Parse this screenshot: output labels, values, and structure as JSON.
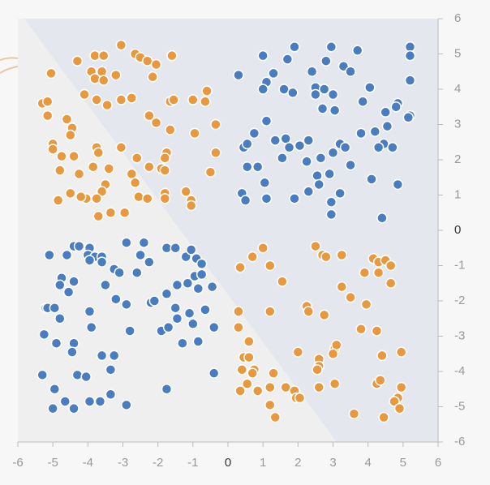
{
  "chart_data": {
    "type": "scatter",
    "xlim": [
      -6,
      6
    ],
    "ylim": [
      -6,
      6
    ],
    "xticks": [
      -6,
      -5,
      -4,
      -3,
      -2,
      -1,
      0,
      1,
      2,
      3,
      4,
      5,
      6
    ],
    "yticks": [
      6,
      5,
      4,
      3,
      2,
      1,
      0,
      -1,
      -2,
      -3,
      -4,
      -5,
      -6
    ],
    "series": [
      {
        "color": "#4a7dbf",
        "x": [
          1.0,
          1.9,
          2.95,
          3.7,
          3.3,
          3.5,
          2.8,
          2.4,
          1.7,
          5.2,
          5.2,
          5.2,
          0.3,
          1.1,
          1.0,
          1.3,
          1.6,
          1.85,
          2.5,
          2.5,
          2.75,
          3.0,
          2.7,
          3.05,
          4.05,
          3.85,
          4.5,
          4.85,
          4.8,
          5.2,
          5.15,
          4.2,
          4.55,
          3.8,
          4.45,
          4.3,
          4.7,
          3.2,
          3.35,
          1.1,
          0.75,
          0.45,
          0.55,
          1.35,
          1.65,
          1.75,
          2.05,
          2.3,
          1.55,
          2.25,
          2.65,
          3.0,
          3.5,
          2.55,
          2.9,
          2.6,
          0.55,
          0.85,
          1.05,
          0.4,
          0.5,
          1.1,
          1.9,
          2.3,
          3.2,
          2.95,
          4.1,
          4.85,
          2.95,
          4.4,
          -5.1,
          -4.6,
          -4.4,
          -4.25,
          -3.95,
          -4.0,
          -3.8,
          -3.6,
          -3.95,
          -3.6,
          -2.9,
          -2.5,
          -2.4,
          -3.25,
          -3.1,
          -2.6,
          -2.25,
          -1.75,
          -1.5,
          -1.2,
          -1.05,
          -0.9,
          -0.75,
          -4.75,
          -4.8,
          -4.4,
          -4.55,
          -3.5,
          -5.2,
          -5.15,
          -4.95,
          -4.8,
          -3.95,
          -3.2,
          -2.9,
          -2.2,
          -2.1,
          -1.75,
          -1.45,
          -1.15,
          -0.95,
          -0.75,
          -0.85,
          -0.45,
          -1.5,
          -1.45,
          -1.1,
          -0.65,
          -1.9,
          -1.7,
          -1.0,
          -2.8,
          -3.9,
          -5.25,
          -4.9,
          -4.4,
          -4.45,
          -3.6,
          -3.25,
          -0.85,
          -1.3,
          -0.4,
          -5.3,
          -4.95,
          -4.65,
          -4.3,
          -4.05,
          -3.95,
          -3.65,
          -3.35,
          -3.35,
          -2.9,
          -5.0,
          -4.4,
          -1.75,
          -0.4
        ],
        "y": [
          4.95,
          5.2,
          5.2,
          5.1,
          4.65,
          4.5,
          4.8,
          4.5,
          4.85,
          5.2,
          4.95,
          4.25,
          4.4,
          4.2,
          4.0,
          4.45,
          4.0,
          3.9,
          4.05,
          3.85,
          4.0,
          3.85,
          3.45,
          3.4,
          4.05,
          3.65,
          3.35,
          3.6,
          3.5,
          3.25,
          3.2,
          2.8,
          2.95,
          2.75,
          2.45,
          2.35,
          2.35,
          2.45,
          2.35,
          3.1,
          2.75,
          2.35,
          2.45,
          2.55,
          2.6,
          2.35,
          2.4,
          2.55,
          2.05,
          1.95,
          2.05,
          2.2,
          1.85,
          1.55,
          1.6,
          1.3,
          1.8,
          1.8,
          1.35,
          1.05,
          0.85,
          0.9,
          0.9,
          1.1,
          1.05,
          0.8,
          1.45,
          1.3,
          0.45,
          0.35,
          -0.7,
          -0.7,
          -0.45,
          -0.45,
          -0.5,
          -0.7,
          -0.75,
          -0.75,
          -0.85,
          -0.9,
          -0.35,
          -0.7,
          -0.35,
          -1.1,
          -1.2,
          -1.2,
          -0.9,
          -0.5,
          -0.5,
          -0.75,
          -0.55,
          -0.8,
          -0.95,
          -1.35,
          -1.55,
          -1.45,
          -1.75,
          -1.55,
          -2.2,
          -2.2,
          -2.2,
          -2.5,
          -2.3,
          -1.95,
          -2.1,
          -2.05,
          -2.0,
          -1.8,
          -1.55,
          -1.5,
          -1.3,
          -1.25,
          -1.65,
          -1.6,
          -2.2,
          -2.5,
          -2.35,
          -2.25,
          -2.85,
          -2.75,
          -2.65,
          -2.85,
          -2.75,
          -2.95,
          -3.2,
          -3.2,
          -3.45,
          -3.55,
          -3.55,
          -3.15,
          -3.2,
          -2.75,
          -4.1,
          -4.5,
          -4.85,
          -4.1,
          -4.15,
          -4.85,
          -4.85,
          -4.65,
          -3.95,
          -4.95,
          -5.05,
          -5.05,
          -4.5,
          -4.05
        ]
      },
      {
        "color": "#e8993f",
        "x": [
          -5.05,
          -4.3,
          -3.8,
          -3.55,
          -3.05,
          -2.65,
          -2.5,
          -2.3,
          -2.05,
          -1.6,
          -3.9,
          -3.6,
          -3.8,
          -3.55,
          -3.2,
          -2.15,
          -5.3,
          -5.15,
          -5.15,
          -4.6,
          -4.1,
          -3.75,
          -3.45,
          -3.05,
          -2.75,
          -2.25,
          -2.05,
          -1.65,
          -1.55,
          -1.0,
          -0.6,
          -0.65,
          -1.65,
          -0.95,
          -0.35,
          -4.45,
          -4.5,
          -5.0,
          -5.0,
          -4.75,
          -4.4,
          -3.75,
          -3.7,
          -3.05,
          -2.6,
          -1.75,
          -1.8,
          -0.35,
          -4.8,
          -4.25,
          -3.85,
          -3.4,
          -2.75,
          -2.25,
          -1.9,
          -1.8,
          -2.65,
          -0.5,
          -3.5,
          -3.6,
          -4.05,
          -4.5,
          -4.2,
          -3.75,
          -2.55,
          -2.3,
          -1.8,
          -1.8,
          -1.2,
          -1.05,
          -1.05,
          -4.85,
          -3.7,
          -3.35,
          -2.95,
          0.35,
          0.7,
          1.0,
          1.2,
          1.55,
          2.5,
          2.7,
          2.8,
          3.25,
          4.15,
          4.3,
          4.5,
          4.65,
          3.9,
          4.3,
          4.65,
          3.25,
          3.5,
          3.95,
          2.25,
          2.3,
          2.75,
          1.2,
          0.3,
          0.3,
          0.6,
          3.8,
          4.25,
          2.0,
          2.6,
          2.6,
          3.05,
          3.1,
          3.0,
          4.4,
          4.95,
          0.45,
          0.6,
          0.75,
          0.4,
          0.7,
          1.3,
          0.55,
          0.35,
          0.85,
          1.2,
          1.65,
          1.9,
          1.95,
          2.05,
          2.6,
          2.55,
          3.05,
          4.25,
          4.35,
          4.95,
          4.85,
          4.75,
          4.9,
          1.2,
          1.35,
          3.6,
          4.45
        ],
        "y": [
          4.45,
          4.8,
          4.95,
          4.95,
          5.25,
          5.0,
          4.9,
          4.8,
          4.7,
          4.95,
          4.5,
          4.5,
          4.3,
          4.25,
          4.4,
          4.35,
          3.6,
          3.65,
          3.25,
          3.15,
          3.85,
          3.7,
          3.55,
          3.7,
          3.75,
          3.25,
          3.05,
          3.65,
          3.7,
          3.7,
          3.95,
          3.65,
          2.85,
          2.75,
          3.0,
          2.9,
          2.7,
          2.45,
          2.3,
          2.1,
          2.1,
          2.35,
          2.2,
          2.35,
          2.05,
          2.2,
          2.05,
          2.2,
          1.7,
          1.6,
          1.8,
          1.75,
          1.6,
          1.8,
          1.75,
          1.7,
          1.35,
          1.65,
          1.3,
          1.1,
          0.9,
          1.05,
          0.95,
          0.9,
          0.95,
          0.9,
          1.05,
          0.9,
          1.1,
          0.85,
          0.7,
          0.85,
          0.4,
          0.5,
          0.5,
          -1.05,
          -0.75,
          -0.5,
          -1.0,
          -1.45,
          -0.45,
          -0.7,
          -0.75,
          -0.7,
          -0.8,
          -0.9,
          -0.85,
          -1.0,
          -1.2,
          -1.2,
          -1.5,
          -1.6,
          -1.9,
          -2.1,
          -2.15,
          -2.3,
          -2.4,
          -2.3,
          -2.3,
          -2.75,
          -3.15,
          -2.8,
          -2.85,
          -3.45,
          -3.65,
          -3.85,
          -3.35,
          -3.25,
          -3.5,
          -3.55,
          -3.45,
          -3.6,
          -3.6,
          -3.95,
          -3.95,
          -4.05,
          -4.05,
          -4.35,
          -4.55,
          -4.55,
          -4.45,
          -4.45,
          -4.55,
          -4.75,
          -4.75,
          -4.45,
          -3.95,
          -4.35,
          -4.35,
          -4.25,
          -4.45,
          -4.75,
          -4.85,
          -5.05,
          -4.95,
          -5.3,
          -5.2,
          -5.3
        ]
      }
    ]
  }
}
